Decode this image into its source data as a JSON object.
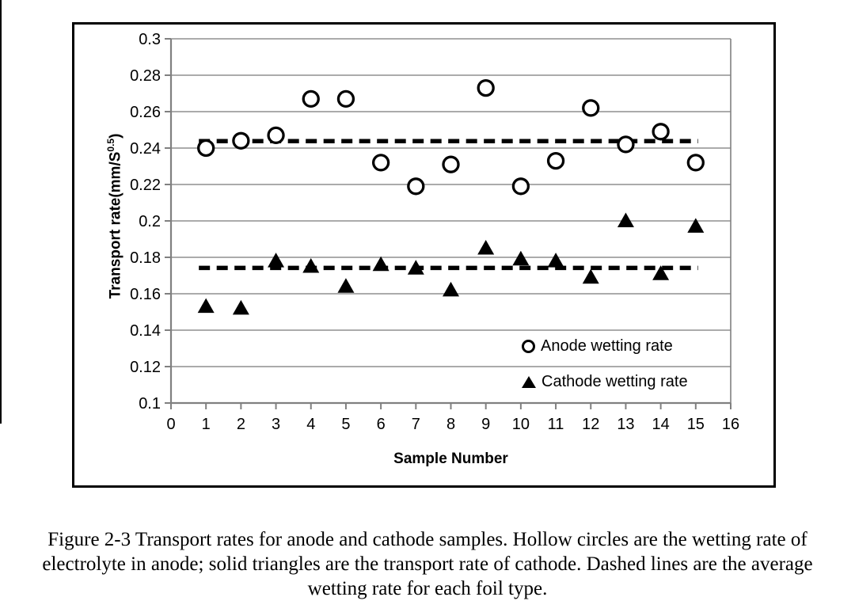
{
  "figure": {
    "caption_lines": [
      "Figure 2-3 Transport rates for anode and cathode samples. Hollow circles are the wetting rate of",
      "electrolyte in anode; solid triangles are the transport rate of cathode. Dashed lines are the average",
      "wetting rate for each foil type."
    ]
  },
  "chart_data": {
    "type": "scatter",
    "title": "",
    "xlabel": "Sample Number",
    "ylabel": "Transport rate(mm/S^0.5)",
    "ylabel_parts": {
      "prefix": "Transport rate(mm/S",
      "sup": "0.5",
      "suffix": ")"
    },
    "xlim": [
      0,
      16
    ],
    "ylim": [
      0.1,
      0.3
    ],
    "x_ticks": [
      "0",
      "1",
      "2",
      "3",
      "4",
      "5",
      "6",
      "7",
      "8",
      "9",
      "10",
      "11",
      "12",
      "13",
      "14",
      "15",
      "16"
    ],
    "y_ticks": [
      {
        "value": 0.3,
        "label": "0.3"
      },
      {
        "value": 0.28,
        "label": "0.28"
      },
      {
        "value": 0.26,
        "label": "0.26"
      },
      {
        "value": 0.24,
        "label": "0.24"
      },
      {
        "value": 0.22,
        "label": "0.22"
      },
      {
        "value": 0.2,
        "label": "0.2"
      },
      {
        "value": 0.18,
        "label": "0.18"
      },
      {
        "value": 0.16,
        "label": "0.16"
      },
      {
        "value": 0.14,
        "label": "0.14"
      },
      {
        "value": 0.12,
        "label": "0.12"
      },
      {
        "value": 0.1,
        "label": "0.1"
      }
    ],
    "grid": "horizontal-on",
    "legend_position": "inside-lower-right",
    "x": [
      1,
      2,
      3,
      4,
      5,
      6,
      7,
      8,
      9,
      10,
      11,
      12,
      13,
      14,
      15
    ],
    "series": [
      {
        "name": "Anode wetting rate",
        "marker": "hollow-circle",
        "values": [
          0.24,
          0.244,
          0.247,
          0.267,
          0.267,
          0.232,
          0.219,
          0.231,
          0.273,
          0.219,
          0.233,
          0.262,
          0.242,
          0.249,
          0.232
        ],
        "mean": 0.2438,
        "mean_line": "dashed"
      },
      {
        "name": "Cathode wetting rate",
        "marker": "solid-triangle",
        "values": [
          0.153,
          0.152,
          0.178,
          0.175,
          0.164,
          0.176,
          0.174,
          0.162,
          0.185,
          0.179,
          0.178,
          0.169,
          0.2,
          0.171,
          0.197
        ],
        "mean": 0.1742,
        "mean_line": "dashed"
      }
    ],
    "colors": {
      "marker": "#000000",
      "grid": "#8f8f8f",
      "axis": "#808080",
      "text": "#000000"
    }
  }
}
